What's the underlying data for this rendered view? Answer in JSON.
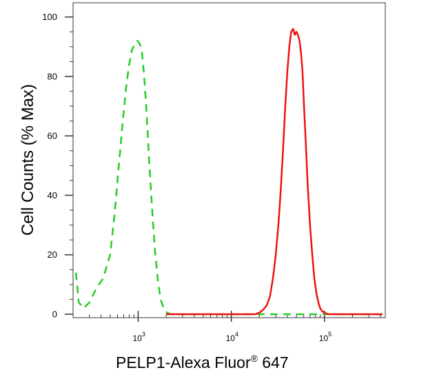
{
  "chart_data": {
    "type": "line",
    "title": "",
    "xlabel": "PELP1-Alexa Fluor",
    "xlabel_sup": "®",
    "xlabel_suffix": " 647",
    "ylabel": "Cell Counts (% Max)",
    "x_scale": "log",
    "xlim": [
      200,
      450000
    ],
    "ylim": [
      0,
      102
    ],
    "y_ticks": [
      "0",
      "20",
      "40",
      "60",
      "80",
      "100"
    ],
    "x_ticks": [
      {
        "value": 1000,
        "base": "10",
        "exp": "3"
      },
      {
        "value": 10000,
        "base": "10",
        "exp": "4"
      },
      {
        "value": 100000,
        "base": "10",
        "exp": "5"
      }
    ],
    "grid": false,
    "legend": "none",
    "series": [
      {
        "color": "#22cc22",
        "style": "dashed",
        "x": [
          215,
          230,
          260,
          300,
          360,
          420,
          500,
          560,
          620,
          680,
          740,
          800,
          860,
          920,
          980,
          1040,
          1100,
          1160,
          1220,
          1280,
          1350,
          1430,
          1520,
          1620,
          1740,
          1880,
          2040,
          2220,
          2420,
          2640,
          3000,
          4000,
          10000,
          30000,
          100000,
          420000
        ],
        "y": [
          14,
          4,
          2,
          4,
          9,
          12,
          20,
          34,
          50,
          64,
          76,
          84,
          89,
          91,
          92,
          91,
          88,
          80,
          70,
          58,
          45,
          33,
          21,
          12,
          5,
          2,
          0.5,
          0,
          0,
          0,
          0,
          0,
          0,
          0,
          0,
          0
        ]
      },
      {
        "color": "#ee1111",
        "style": "solid",
        "x": [
          2000,
          10000,
          18000,
          20000,
          22000,
          24000,
          26000,
          28000,
          30000,
          32000,
          34000,
          36000,
          38000,
          40000,
          42000,
          44000,
          46000,
          48000,
          50000,
          52000,
          54000,
          56000,
          58000,
          60000,
          63000,
          66000,
          70000,
          74000,
          78000,
          82000,
          86000,
          90000,
          95000,
          100000,
          110000,
          130000,
          200000,
          420000
        ],
        "y": [
          0,
          0,
          0,
          0.5,
          1.5,
          3,
          6,
          12,
          20,
          30,
          42,
          56,
          70,
          82,
          90,
          95,
          96,
          94,
          95,
          94,
          92,
          88,
          82,
          72,
          58,
          44,
          30,
          20,
          12,
          7,
          4,
          2,
          1,
          0.5,
          0,
          0,
          0,
          0
        ]
      }
    ]
  }
}
